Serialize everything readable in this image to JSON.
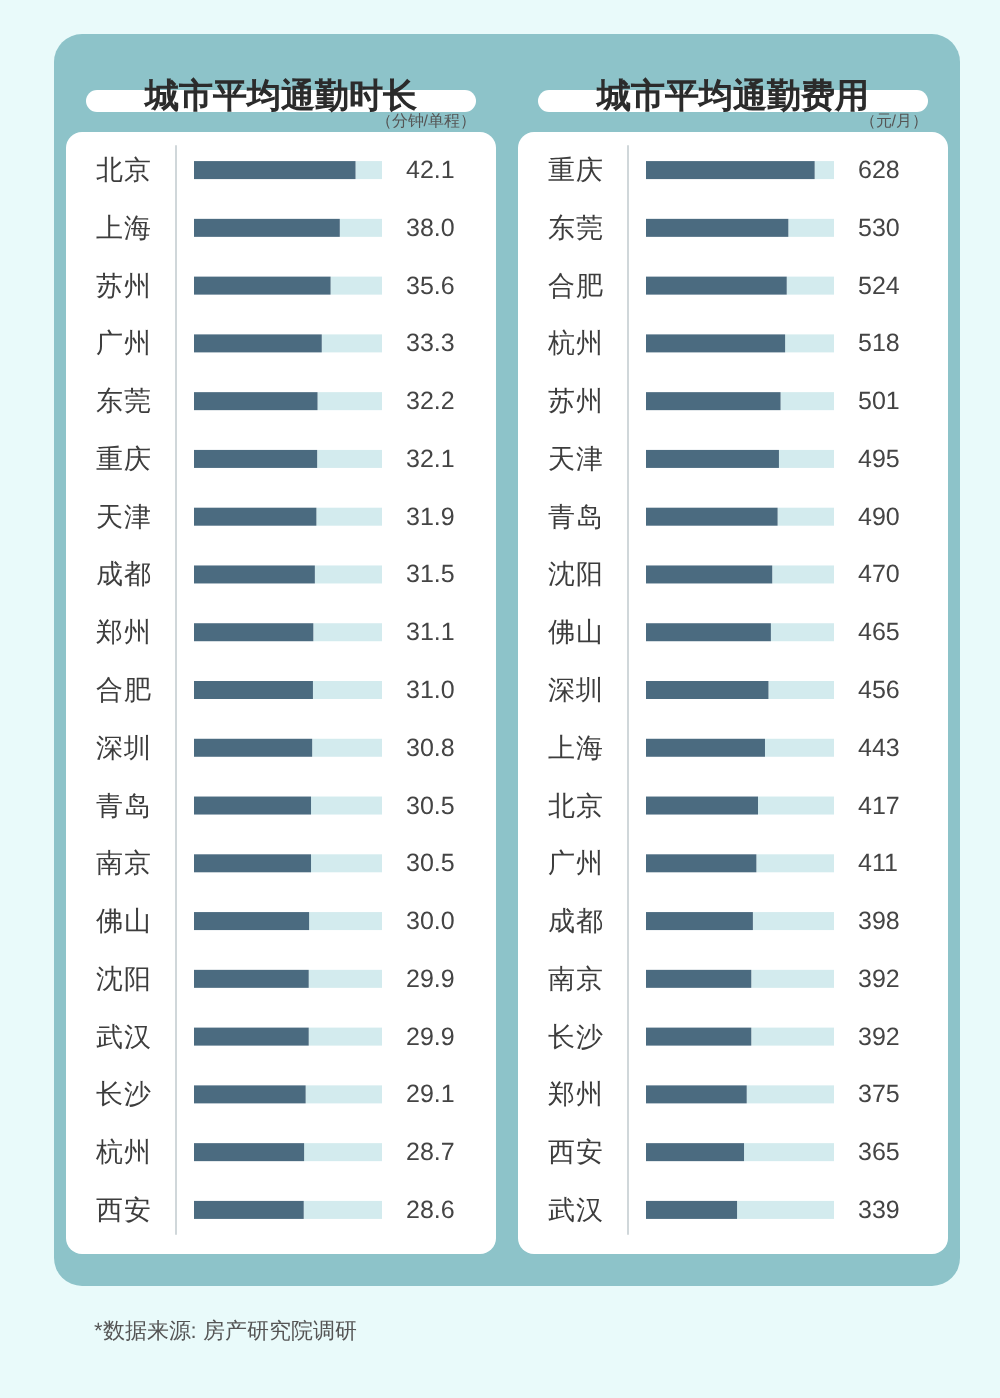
{
  "chart_data": [
    {
      "type": "bar",
      "orientation": "horizontal",
      "title": "城市平均通勤时长",
      "xlabel": "（分钟/单程）",
      "tick_labels": "y",
      "categories": [
        "北京",
        "上海",
        "苏州",
        "广州",
        "东莞",
        "重庆",
        "天津",
        "成都",
        "郑州",
        "合肥",
        "深圳",
        "青岛",
        "南京",
        "佛山",
        "沈阳",
        "武汉",
        "长沙",
        "杭州",
        "西安"
      ],
      "values": [
        42.1,
        38.0,
        35.6,
        33.3,
        32.2,
        32.1,
        31.9,
        31.5,
        31.1,
        31.0,
        30.8,
        30.5,
        30.5,
        30.0,
        29.9,
        29.9,
        29.1,
        28.7,
        28.6
      ],
      "value_labels": [
        "42.1",
        "38.0",
        "35.6",
        "33.3",
        "32.2",
        "32.1",
        "31.9",
        "31.5",
        "31.1",
        "31.0",
        "30.8",
        "30.5",
        "30.5",
        "30.0",
        "29.9",
        "29.9",
        "29.1",
        "28.7",
        "28.6"
      ],
      "color": "#4b6b80",
      "xlim": [
        0,
        49
      ],
      "annotations": [
        "*数据来源: 房产研究院调研"
      ]
    },
    {
      "type": "bar",
      "orientation": "horizontal",
      "title": "城市平均通勤费用",
      "xlabel": "（元/月）",
      "tick_labels": "y",
      "categories": [
        "重庆",
        "东莞",
        "合肥",
        "杭州",
        "苏州",
        "天津",
        "青岛",
        "沈阳",
        "佛山",
        "深圳",
        "上海",
        "北京",
        "广州",
        "成都",
        "南京",
        "长沙",
        "郑州",
        "西安",
        "武汉"
      ],
      "values": [
        628,
        530,
        524,
        518,
        501,
        495,
        490,
        470,
        465,
        456,
        443,
        417,
        411,
        398,
        392,
        392,
        375,
        365,
        339
      ],
      "data_labels": true,
      "color": "#4b6b80",
      "xlim": [
        0,
        700
      ]
    }
  ]
}
